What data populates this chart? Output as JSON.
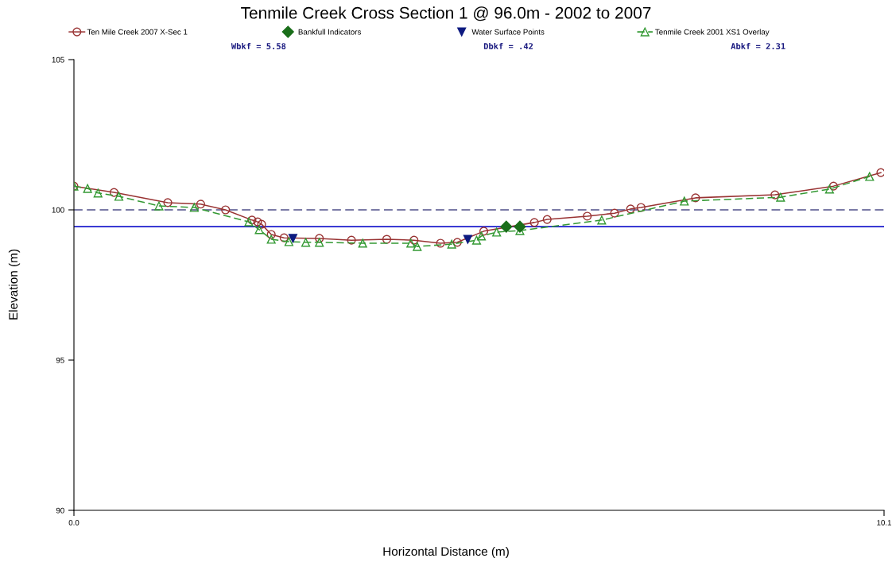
{
  "chart_data": {
    "type": "line",
    "title": "Tenmile Creek Cross Section 1 @ 96.0m - 2002 to 2007",
    "xlabel": "Horizontal Distance (m)",
    "ylabel": "Elevation (m)",
    "xlim": [
      0,
      10.1
    ],
    "xticks": [
      {
        "value": 0,
        "label": "0.0"
      },
      10.1
    ],
    "ylim": [
      90,
      105
    ],
    "yticks": [
      90,
      95,
      100,
      105
    ],
    "grid": false,
    "legend": "top",
    "annotations": [
      "Wbkf = 5.58",
      "Dbkf = .42",
      "Abkf = 2.31"
    ],
    "ref_lines": [
      {
        "axis": "y",
        "value": 100,
        "label": null,
        "color": "#7a7aa6",
        "line_style": "dashed"
      },
      {
        "axis": "y",
        "value": 99.44,
        "label": null,
        "color": "#1a1acc",
        "line_style": "solid"
      }
    ],
    "series": [
      {
        "name": "Ten Mile Creek 2007 X-Sec 1",
        "color": "#993333",
        "marker": "circle",
        "line_style": "solid",
        "x": [
          0,
          0.5,
          1.17,
          1.58,
          1.89,
          2.22,
          2.29,
          2.34,
          2.46,
          2.62,
          3.06,
          3.46,
          3.9,
          4.24,
          4.57,
          4.78,
          5.11,
          5.74,
          5.9,
          6.4,
          6.74,
          6.94,
          7.07,
          7.75,
          8.74,
          9.47,
          10.06
        ],
        "values": [
          100.79,
          100.58,
          100.24,
          100.19,
          100.0,
          99.66,
          99.6,
          99.52,
          99.18,
          99.07,
          99.05,
          98.99,
          99.02,
          98.99,
          98.89,
          98.92,
          99.29,
          99.58,
          99.68,
          99.79,
          99.89,
          100.03,
          100.08,
          100.4,
          100.5,
          100.79,
          101.24
        ]
      },
      {
        "name": "Bankfull Indicators",
        "type": "scatter",
        "color": "#1a6e1a",
        "marker": "diamond",
        "x": [
          5.39,
          5.56
        ],
        "values": [
          99.44,
          99.44
        ]
      },
      {
        "name": "Water Surface Points",
        "type": "scatter",
        "color": "#0d1a80",
        "marker": "triangle_down",
        "x": [
          2.73,
          4.91
        ],
        "values": [
          99.05,
          99.02
        ]
      },
      {
        "name": "Tenmile Creek 2001 XS1 Overlay",
        "color": "#339933",
        "marker": "triangle",
        "line_style": "dashed",
        "x": [
          0,
          0.17,
          0.3,
          0.56,
          1.06,
          1.5,
          2.18,
          2.31,
          2.46,
          2.68,
          2.89,
          3.06,
          3.6,
          4.2,
          4.28,
          4.71,
          5.02,
          5.08,
          5.27,
          5.56,
          6.58,
          7.61,
          8.81,
          9.42,
          9.92
        ],
        "values": [
          100.79,
          100.71,
          100.56,
          100.45,
          100.13,
          100.08,
          99.6,
          99.34,
          99.02,
          98.94,
          98.92,
          98.92,
          98.89,
          98.89,
          98.78,
          98.86,
          98.99,
          99.13,
          99.26,
          99.31,
          99.66,
          100.29,
          100.42,
          100.69,
          101.11
        ]
      }
    ]
  }
}
